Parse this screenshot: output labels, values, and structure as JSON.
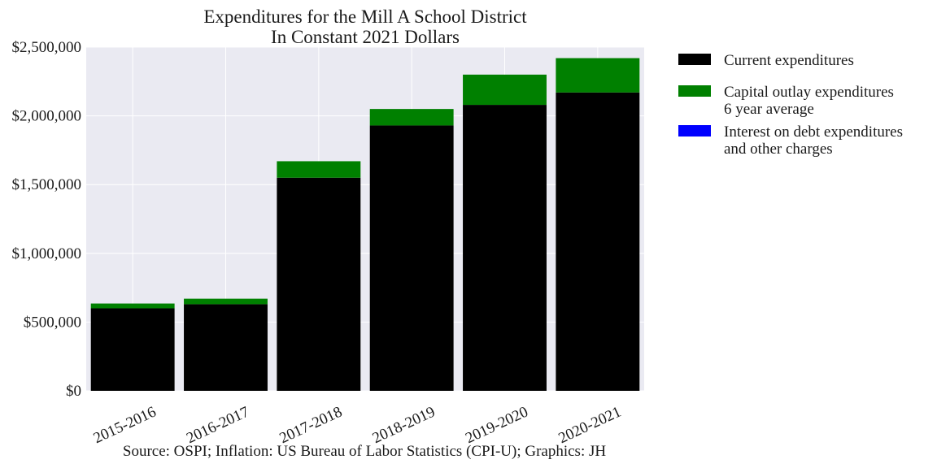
{
  "chart_data": {
    "type": "bar",
    "stacked": true,
    "title": [
      "Expenditures for the Mill A School District",
      "In Constant 2021 Dollars"
    ],
    "categories": [
      "2015-2016",
      "2016-2017",
      "2017-2018",
      "2018-2019",
      "2019-2020",
      "2020-2021"
    ],
    "series": [
      {
        "name": "Current expenditures",
        "color": "#000000",
        "values": [
          600000,
          630000,
          1550000,
          1930000,
          2080000,
          2170000
        ]
      },
      {
        "name": "Capital outlay expenditures\n6 year average",
        "color": "#008000",
        "values": [
          35000,
          40000,
          120000,
          120000,
          220000,
          250000
        ]
      },
      {
        "name": "Interest on debt expenditures\nand other charges",
        "color": "#0000ff",
        "values": [
          0,
          0,
          0,
          0,
          0,
          0
        ]
      }
    ],
    "ylim": [
      0,
      2500000
    ],
    "yticks": [
      0,
      500000,
      1000000,
      1500000,
      2000000,
      2500000
    ],
    "ytick_labels": [
      "$0",
      "$500,000",
      "$1,000,000",
      "$1,500,000",
      "$2,000,000",
      "$2,500,000"
    ],
    "grid": true,
    "legend_position": "outside-right",
    "plot_background": "#eaeaf2",
    "source": "Source: OSPI; Inflation: US Bureau of Labor Statistics (CPI-U); Graphics: JH"
  }
}
